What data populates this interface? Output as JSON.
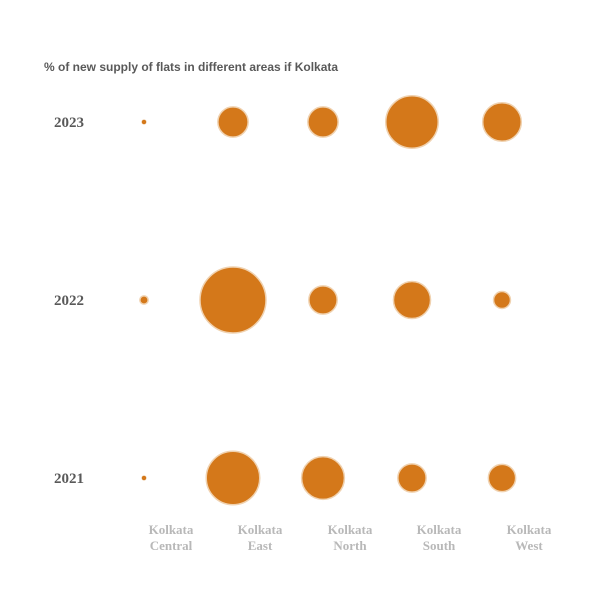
{
  "chart_data": {
    "type": "scatter",
    "title": "% of new supply of flats in different areas if Kolkata",
    "xlabel": "",
    "ylabel": "",
    "categories": [
      [
        "Kolkata",
        "Central"
      ],
      [
        "Kolkata",
        "East"
      ],
      [
        "Kolkata",
        "North"
      ],
      [
        "Kolkata",
        "South"
      ],
      [
        "Kolkata",
        "West"
      ]
    ],
    "years": [
      "2023",
      "2022",
      "2021"
    ],
    "bubble_color": "#d4781a",
    "bubble_stroke": "#f0d2b0",
    "grid": false,
    "legend": "none",
    "series": [
      {
        "name": "2023",
        "values": [
          0.2,
          8,
          8,
          24,
          13
        ]
      },
      {
        "name": "2022",
        "values": [
          0.6,
          38,
          7,
          12,
          2.5
        ]
      },
      {
        "name": "2021",
        "values": [
          0.2,
          25,
          16,
          7,
          6.5
        ]
      }
    ]
  }
}
